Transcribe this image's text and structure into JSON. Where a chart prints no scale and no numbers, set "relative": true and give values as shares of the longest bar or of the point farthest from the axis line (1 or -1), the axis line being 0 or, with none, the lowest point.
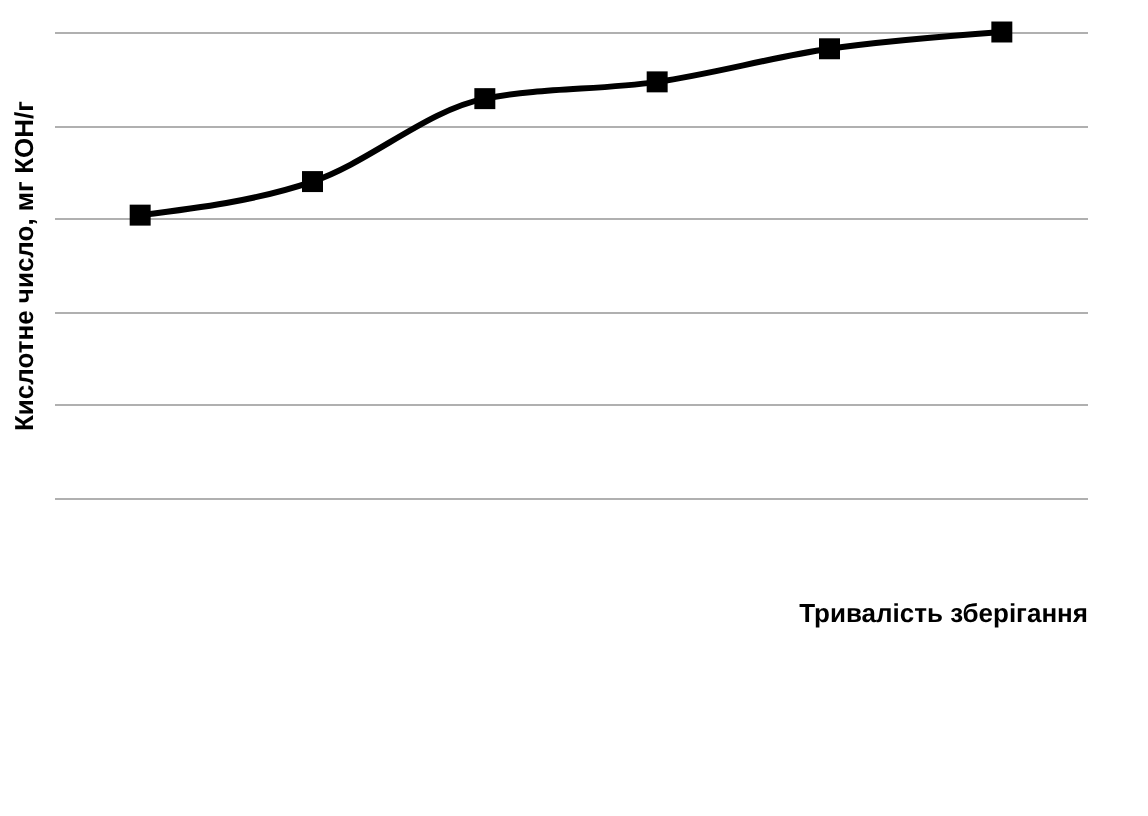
{
  "chart_data": {
    "type": "line",
    "relative": true,
    "xlabel": "Тривалість зберігання",
    "ylabel": "Кислотне число, мг КОН/г",
    "categories": [
      null,
      null,
      null,
      null,
      null,
      null
    ],
    "series": [
      {
        "color": "#000000",
        "values": [
          0.607,
          0.679,
          0.857,
          0.893,
          0.964,
          1
        ]
      }
    ],
    "grid": "y",
    "marker": "square",
    "line_style": "solid"
  }
}
